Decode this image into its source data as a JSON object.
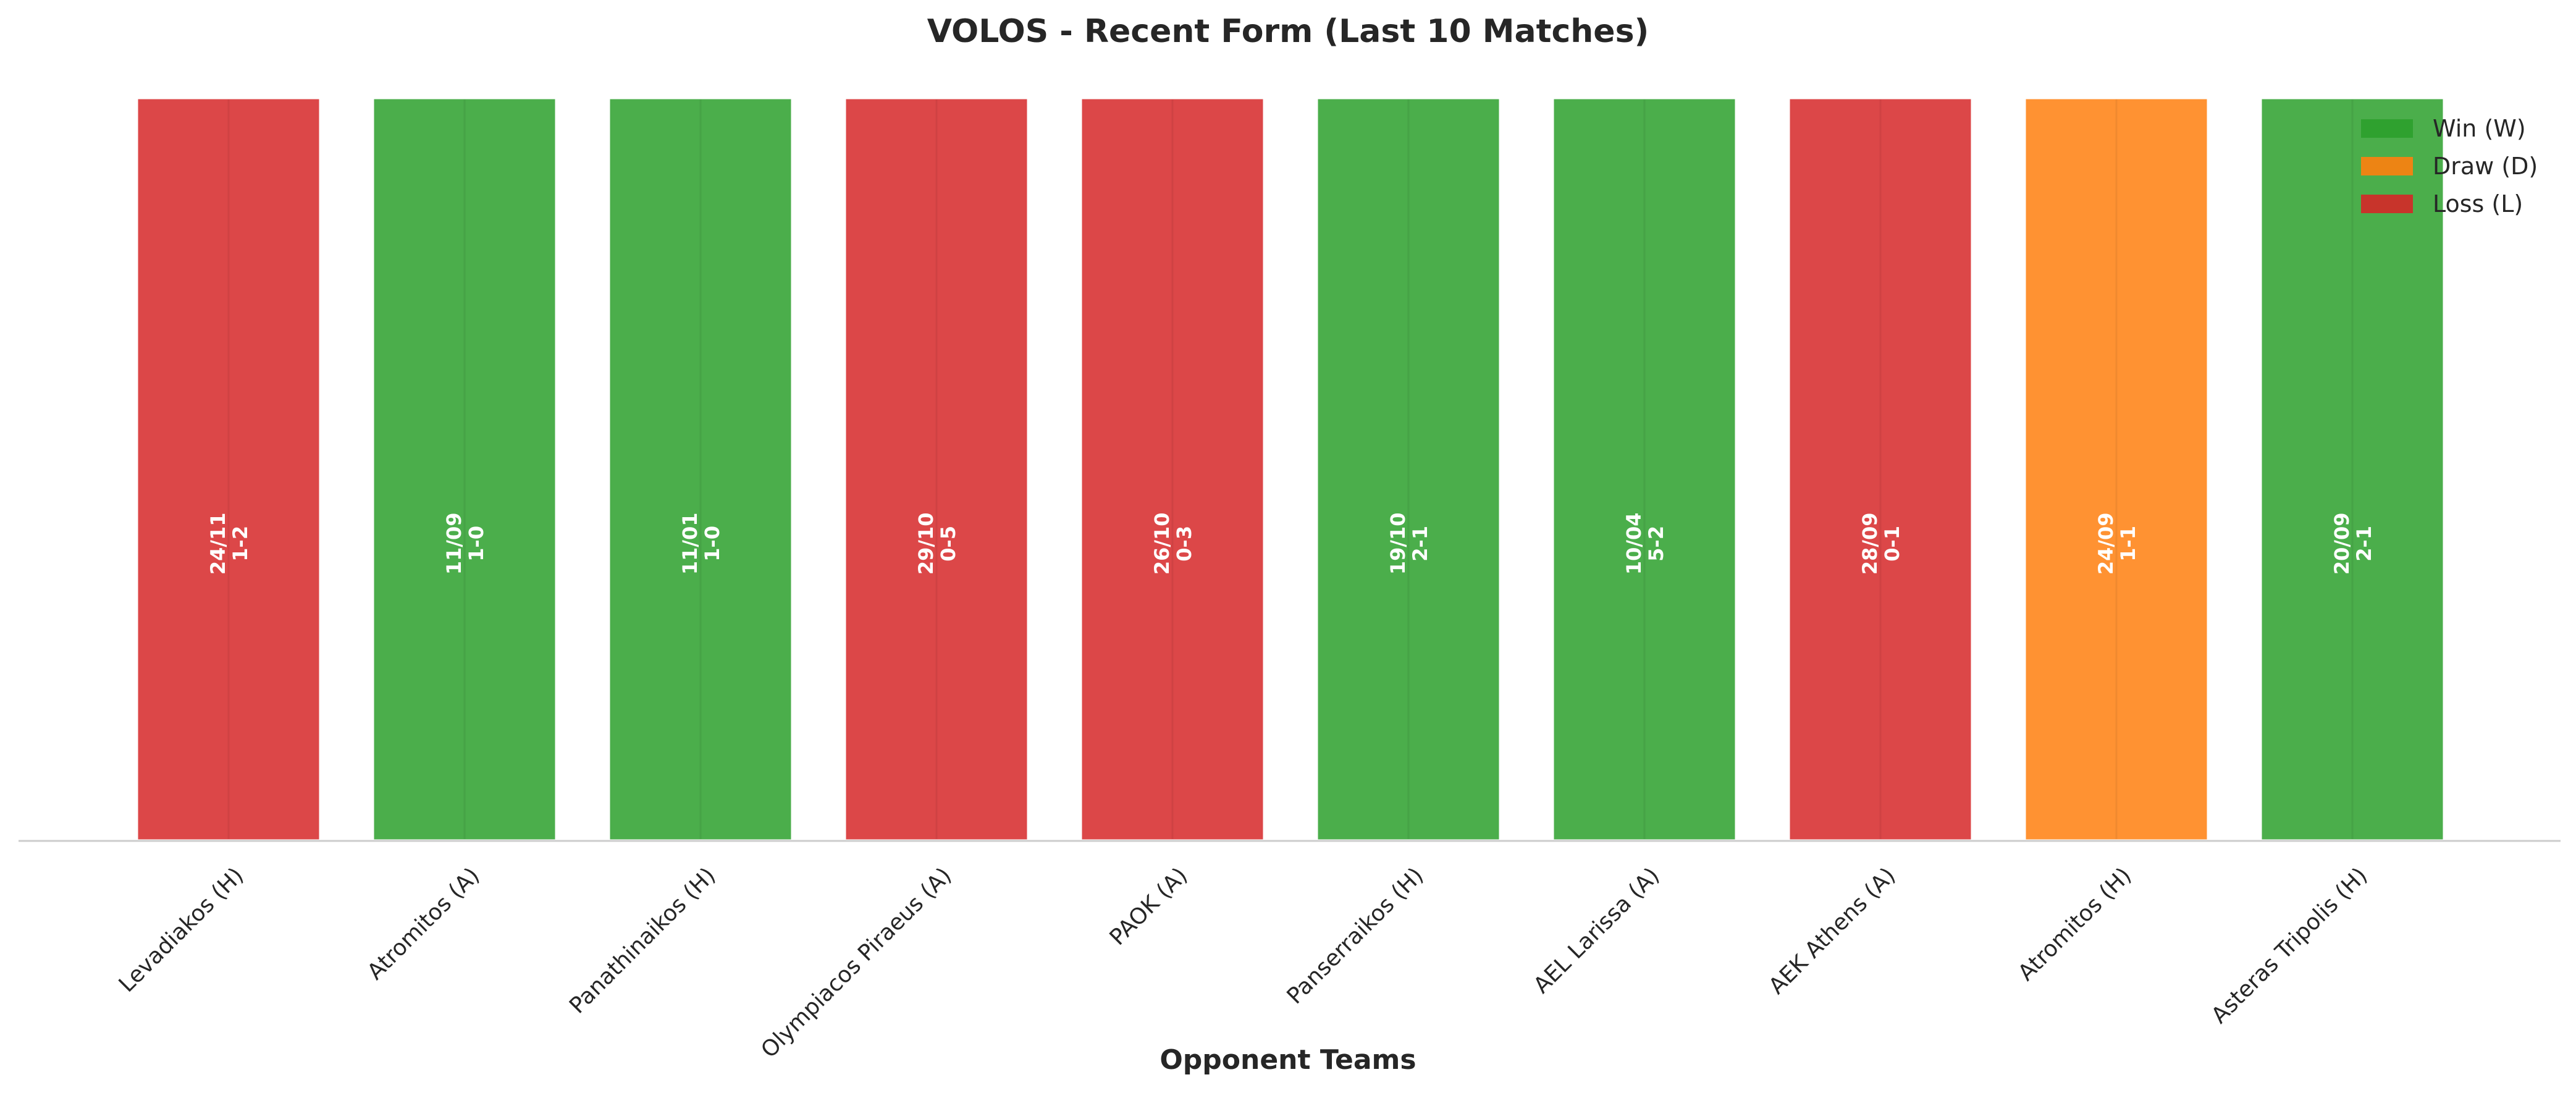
{
  "chart_data": {
    "type": "bar",
    "title": "VOLOS - Recent Form (Last 10 Matches)",
    "xlabel": "Opponent Teams",
    "ylabel": "",
    "ylim": [
      0,
      1
    ],
    "grid": false,
    "legend_position": "top-right",
    "categories": [
      "Levadiakos (H)",
      "Atromitos (A)",
      "Panathinaikos (H)",
      "Olympiacos Piraeus (A)",
      "PAOK (A)",
      "Panserraikos (H)",
      "AEL Larissa (A)",
      "AEK Athens (A)",
      "Atromitos (H)",
      "Asteras Tripolis (H)"
    ],
    "values": [
      1,
      1,
      1,
      1,
      1,
      1,
      1,
      1,
      1,
      1
    ],
    "results": [
      "L",
      "W",
      "W",
      "L",
      "L",
      "W",
      "W",
      "L",
      "D",
      "W"
    ],
    "dates": [
      "24/11",
      "11/09",
      "11/01",
      "29/10",
      "26/10",
      "19/10",
      "10/04",
      "28/09",
      "24/09",
      "20/09"
    ],
    "scores": [
      "1-2",
      "1-0",
      "1-0",
      "0-5",
      "0-3",
      "2-1",
      "5-2",
      "0-1",
      "1-1",
      "2-1"
    ],
    "legend": [
      {
        "key": "W",
        "label": "Win (W)",
        "color": "#2ca02c"
      },
      {
        "key": "D",
        "label": "Draw (D)",
        "color": "#ff7f0e"
      },
      {
        "key": "L",
        "label": "Loss (L)",
        "color": "#d62728"
      }
    ]
  }
}
